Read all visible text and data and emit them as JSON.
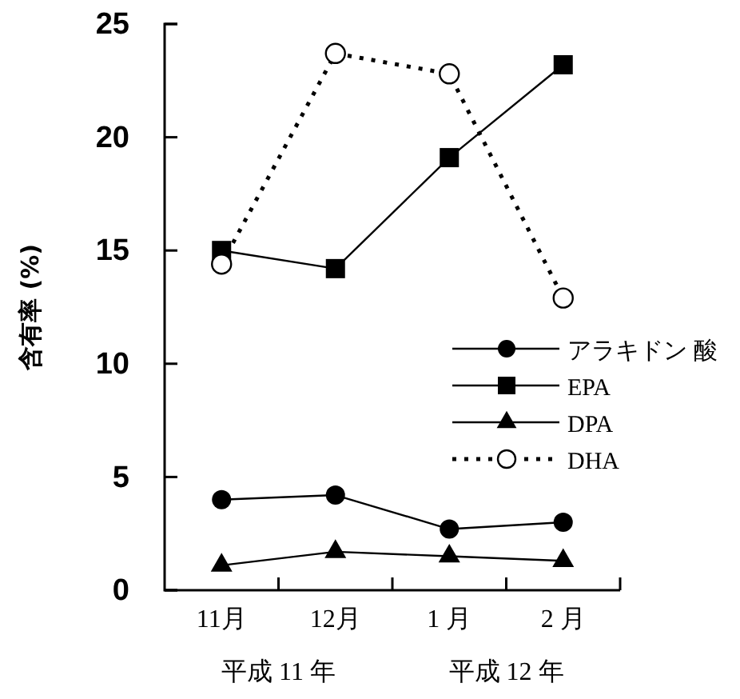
{
  "chart_data": {
    "type": "line",
    "ylabel": "含有率 (%)",
    "categories": [
      "11月",
      "12月",
      "1 月",
      "2 月"
    ],
    "annotations": [
      "平成 11 年",
      "平成 12 年"
    ],
    "ylim": [
      0,
      25
    ],
    "yticks": [
      0,
      5,
      10,
      15,
      20,
      25
    ],
    "legend": "right",
    "series": [
      {
        "name": "アラキドン 酸",
        "color": "#000000",
        "marker": "circle",
        "line_style": "solid",
        "values": [
          4.0,
          4.2,
          2.7,
          3.0
        ]
      },
      {
        "name": "EPA",
        "color": "#000000",
        "marker": "square",
        "line_style": "solid",
        "values": [
          15.0,
          14.2,
          19.1,
          23.2
        ]
      },
      {
        "name": "DPA",
        "color": "#000000",
        "marker": "triangle",
        "line_style": "solid",
        "values": [
          1.1,
          1.7,
          1.5,
          1.3
        ]
      },
      {
        "name": "DHA",
        "color": "#000000",
        "marker": "circle-open",
        "line_style": "dotted",
        "values": [
          14.4,
          23.7,
          22.8,
          12.9
        ]
      }
    ]
  }
}
